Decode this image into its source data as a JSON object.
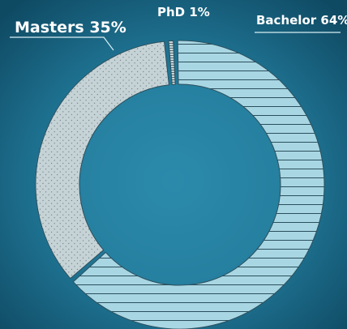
{
  "chart_data": {
    "type": "donut",
    "categories": [
      "Bachelor",
      "Masters",
      "PhD"
    ],
    "values": [
      64,
      35,
      1
    ],
    "value_labels": [
      "64%",
      "35%",
      "1%"
    ],
    "colors": [
      "#a9d6e3",
      "#c6d3d6",
      "#c6d3d6"
    ]
  }
}
